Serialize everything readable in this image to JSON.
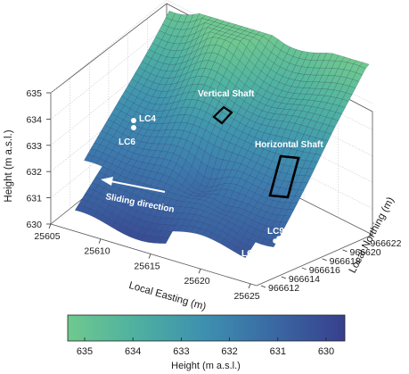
{
  "chart_data": {
    "type": "surface",
    "x_axis": {
      "label": "Local Easting (m)",
      "ticks": [
        25605,
        25610,
        25615,
        25620,
        25625
      ]
    },
    "y_axis": {
      "label": "Local Northing (m)",
      "ticks": [
        966612,
        966614,
        966616,
        966618,
        966620,
        966622
      ]
    },
    "z_axis": {
      "label": "Height (m a.s.l.)",
      "ticks": [
        630,
        631,
        632,
        633,
        634,
        635
      ],
      "range": [
        630,
        635
      ]
    },
    "grid": true,
    "colormap": {
      "low": "#373f8d",
      "mid": "#3d8fb0",
      "high": "#6fc98e"
    },
    "colorbar": {
      "label": "Height (m a.s.l.)",
      "ticks": [
        635,
        634,
        633,
        632,
        631,
        630
      ],
      "position": "bottom",
      "direction": "reversed"
    },
    "annotations": [
      {
        "text": "LC4",
        "kind": "point"
      },
      {
        "text": "LC6",
        "kind": "point"
      },
      {
        "text": "Vertical Shaft",
        "kind": "rectangle"
      },
      {
        "text": "Horizontal Shaft",
        "kind": "rectangle"
      },
      {
        "text": "LC97-1",
        "kind": "point"
      },
      {
        "text": "LC97-2",
        "kind": "point"
      },
      {
        "text": "Sliding direction",
        "kind": "arrow"
      }
    ]
  }
}
